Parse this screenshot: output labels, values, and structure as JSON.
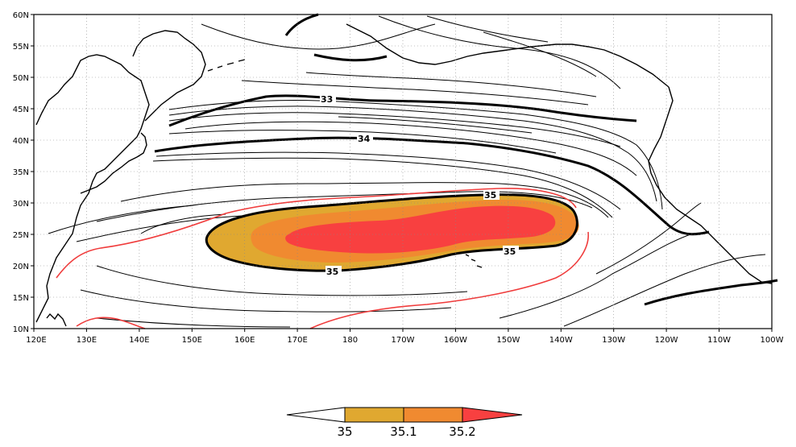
{
  "map": {
    "lat_ticks": [
      "60N",
      "55N",
      "50N",
      "45N",
      "40N",
      "35N",
      "30N",
      "25N",
      "20N",
      "15N",
      "10N"
    ],
    "lon_ticks": [
      "120E",
      "130E",
      "140E",
      "150E",
      "160E",
      "170E",
      "180",
      "170W",
      "160W",
      "150W",
      "140W",
      "130W",
      "120W",
      "110W",
      "100W"
    ],
    "contour_labels": {
      "c33": "33",
      "c34": "34",
      "c35_top": "35",
      "c35_right": "35",
      "c35_bottom": "35"
    },
    "colors": {
      "shade_35": "#e0a830",
      "shade_351": "#f08a30",
      "shade_352": "#f84040",
      "red_contour": "#f03c3c",
      "contour": "#000000"
    }
  },
  "colorbar": {
    "labels": [
      "35",
      "35.1",
      "35.2"
    ],
    "colors": [
      "#ffffff",
      "#e0a830",
      "#f08a30",
      "#f84040"
    ]
  }
}
